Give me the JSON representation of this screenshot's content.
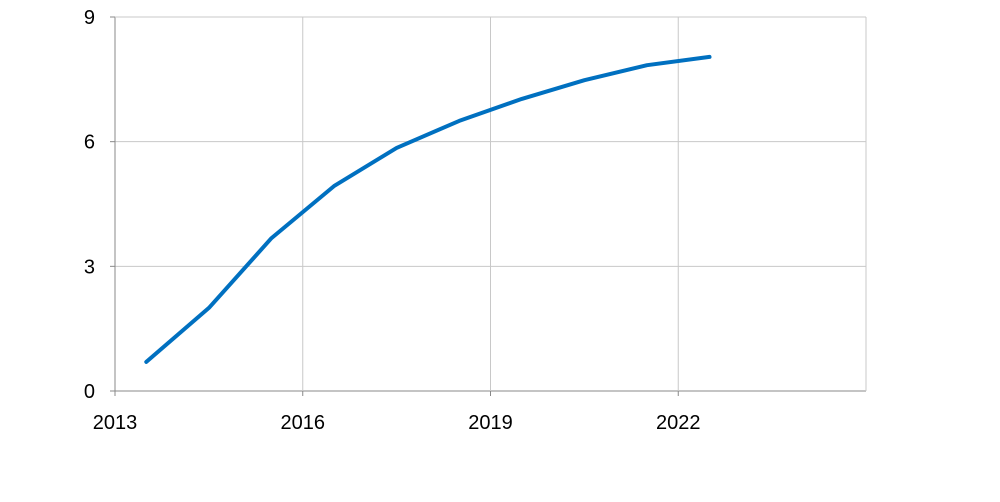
{
  "chart_data": {
    "type": "line",
    "title": "",
    "xlabel": "",
    "ylabel": "",
    "xlim": [
      2013,
      2025
    ],
    "ylim": [
      0,
      9
    ],
    "x_ticks": [
      2013,
      2016,
      2019,
      2022
    ],
    "x_tick_labels": [
      "2013",
      "2016",
      "2019",
      "2022"
    ],
    "y_ticks": [
      0,
      3,
      6,
      9
    ],
    "y_tick_labels": [
      "0",
      "3",
      "6",
      "9"
    ],
    "grid": true,
    "legend": "none",
    "series": [
      {
        "color": "#0070c0",
        "x": [
          2013.5,
          2014.5,
          2015.5,
          2016.5,
          2017.5,
          2018.5,
          2019.5,
          2020.5,
          2021.5,
          2022.5
        ],
        "y": [
          0.7,
          2.0,
          3.68,
          4.93,
          5.85,
          6.5,
          7.03,
          7.48,
          7.84,
          8.04
        ]
      }
    ]
  }
}
